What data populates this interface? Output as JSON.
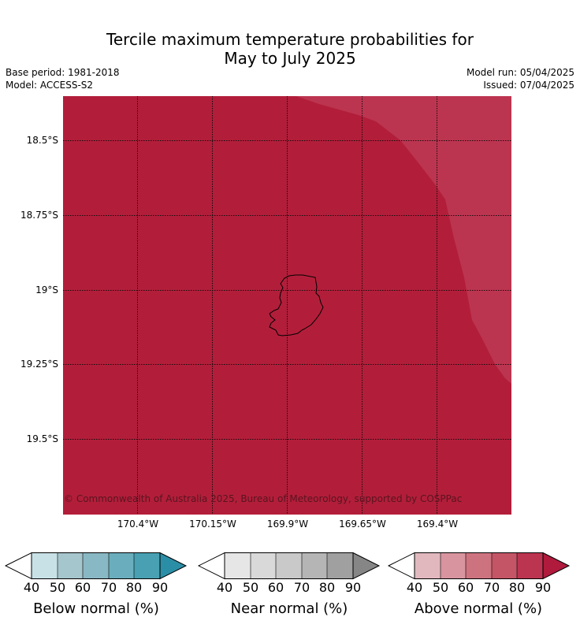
{
  "title_line1": "Tercile maximum temperature probabilities for",
  "title_line2": "May to July 2025",
  "meta": {
    "base_period": "Base period: 1981-2018",
    "model": "Model: ACCESS-S2",
    "model_run": "Model run: 05/04/2025",
    "issued": "Issued: 07/04/2025"
  },
  "map": {
    "lat_labels": [
      "18.5°S",
      "18.75°S",
      "19°S",
      "19.25°S",
      "19.5°S"
    ],
    "lon_labels": [
      "170.4°W",
      "170.15°W",
      "169.9°W",
      "169.65°W",
      "169.4°W"
    ],
    "copyright": "© Commonwealth of Australia 2025, Bureau of Meteorology, supported by COSPPac",
    "category_shown": "Above normal",
    "main_fill_color": "#b21e3a",
    "secondary_fill_color": "#bc3550",
    "grid": "dotted"
  },
  "legends": [
    {
      "title": "Below normal (%)",
      "ticks": [
        "40",
        "50",
        "60",
        "70",
        "80",
        "90"
      ],
      "colors": [
        "#c8e1e7",
        "#a5c6cc",
        "#88b8c4",
        "#6aaebd",
        "#48a0b2",
        "#2b8ea7"
      ]
    },
    {
      "title": "Near normal (%)",
      "ticks": [
        "40",
        "50",
        "60",
        "70",
        "80",
        "90"
      ],
      "colors": [
        "#e6e6e6",
        "#d9d9d9",
        "#c9c9c9",
        "#b5b5b5",
        "#a0a0a0",
        "#868686"
      ]
    },
    {
      "title": "Above normal (%)",
      "ticks": [
        "40",
        "50",
        "60",
        "70",
        "80",
        "90"
      ],
      "colors": [
        "#e2b8bf",
        "#d8959f",
        "#cd737f",
        "#c45566",
        "#bc3550",
        "#b01a3c"
      ]
    }
  ]
}
